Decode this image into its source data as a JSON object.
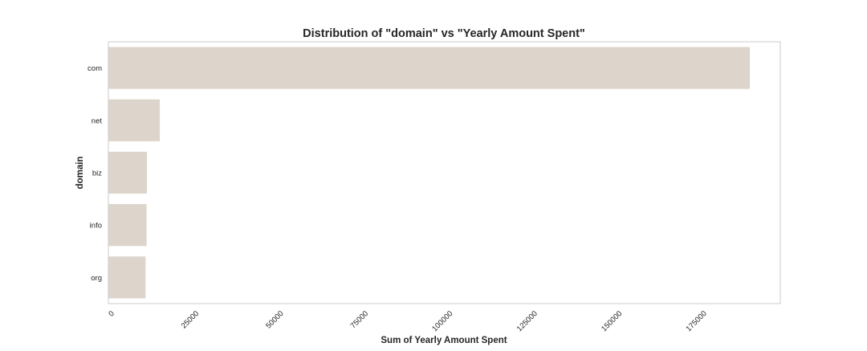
{
  "chart_data": {
    "type": "bar",
    "orientation": "horizontal",
    "title": "Distribution of \"domain\" vs \"Yearly Amount Spent\"",
    "xlabel": "Sum of Yearly Amount Spent",
    "ylabel": "domain",
    "categories": [
      "com",
      "net",
      "biz",
      "info",
      "org"
    ],
    "values": [
      189500,
      15200,
      11400,
      11300,
      11000
    ],
    "xlim": [
      0,
      198500
    ],
    "xticks": [
      0,
      25000,
      50000,
      75000,
      100000,
      125000,
      150000,
      175000
    ],
    "grid": false,
    "bar_color": "#ddd5cb",
    "frame_color": "#cccccc"
  }
}
